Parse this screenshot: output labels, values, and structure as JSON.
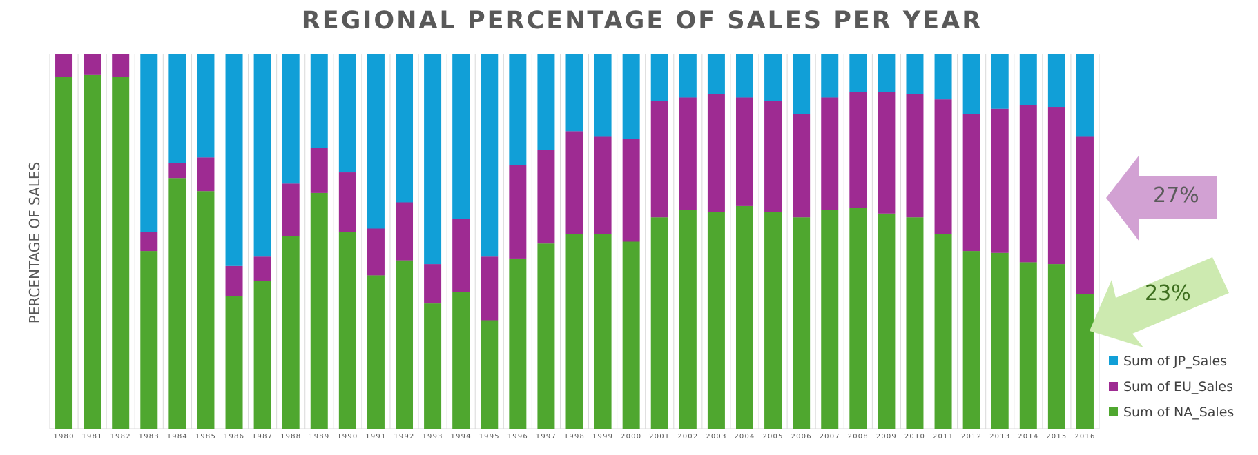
{
  "colors": {
    "jp": "#119FD7",
    "eu": "#9E2B92",
    "na": "#4FA72F",
    "grid": "#D9D9D9",
    "callout_eu": "#D2A1D3",
    "callout_na": "#CDEAB0"
  },
  "callouts": {
    "eu_label": "27%",
    "na_label": "23%"
  },
  "chart_data": {
    "type": "bar",
    "stacked": "percent",
    "title": "REGIONAL PERCENTAGE OF SALES PER YEAR",
    "xlabel": "",
    "ylabel": "PERCENTAGE OF SALES",
    "ylim": [
      0,
      100
    ],
    "legend_position": "right",
    "categories": [
      "1980",
      "1981",
      "1982",
      "1983",
      "1984",
      "1985",
      "1986",
      "1987",
      "1988",
      "1989",
      "1990",
      "1991",
      "1992",
      "1993",
      "1994",
      "1995",
      "1996",
      "1997",
      "1998",
      "1999",
      "2000",
      "2001",
      "2002",
      "2003",
      "2004",
      "2005",
      "2006",
      "2007",
      "2008",
      "2009",
      "2010",
      "2011",
      "2012",
      "2013",
      "2014",
      "2015",
      "2016"
    ],
    "series": [
      {
        "name": "Sum of NA_Sales",
        "key": "na",
        "values": [
          94,
          94.5,
          94,
          47.5,
          67,
          63.5,
          35.5,
          39.5,
          51.5,
          63,
          52.5,
          41,
          45,
          33.5,
          36.5,
          29,
          45.5,
          49.5,
          52,
          52,
          50,
          56.5,
          58.5,
          58,
          59.5,
          58,
          56.5,
          58.5,
          59,
          57.5,
          56.5,
          52,
          47.5,
          47,
          44.5,
          44,
          36
        ]
      },
      {
        "name": "Sum of EU_Sales",
        "key": "eu",
        "values": [
          6,
          5.5,
          6,
          5,
          4,
          9,
          8,
          6.5,
          14,
          12,
          16,
          12.5,
          15.5,
          10.5,
          19.5,
          17,
          25,
          25,
          27.5,
          26,
          27.5,
          31,
          30,
          31.5,
          29,
          29.5,
          27.5,
          30,
          31,
          32.5,
          33,
          36,
          36.5,
          38.5,
          42,
          42,
          42
        ]
      },
      {
        "name": "Sum of JP_Sales",
        "key": "jp",
        "values": [
          0,
          0,
          0,
          47.5,
          29,
          27.5,
          56.5,
          54,
          34.5,
          25,
          31.5,
          46.5,
          39.5,
          56,
          44,
          54,
          29.5,
          25.5,
          20.5,
          22,
          22.5,
          12.5,
          11.5,
          10.5,
          11.5,
          12.5,
          16,
          11.5,
          10,
          10,
          10.5,
          12,
          16,
          14.5,
          13.5,
          14,
          22
        ]
      }
    ]
  }
}
